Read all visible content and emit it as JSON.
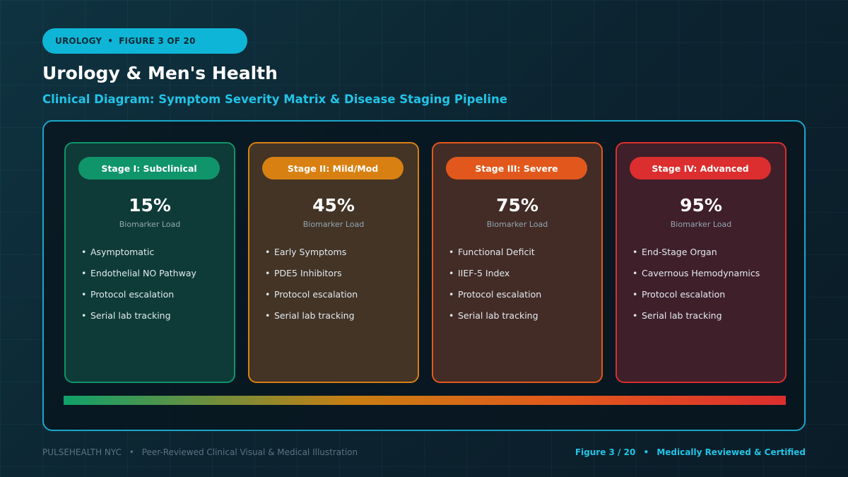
{
  "header": {
    "category": "UROLOGY",
    "figure_label": "FIGURE 3 OF 20",
    "title": "Urology & Men's Health",
    "subtitle": "Clinical Diagram: Symptom Severity Matrix & Disease Staging Pipeline"
  },
  "stages": [
    {
      "label": "Stage I: Subclinical",
      "value": "15%",
      "metric": "Biomarker Load",
      "items": [
        "Asymptomatic",
        "Endothelial NO Pathway",
        "Protocol escalation",
        "Serial lab tracking"
      ],
      "color": "#10956a",
      "bg": "#0e3b37"
    },
    {
      "label": "Stage II: Mild/Mod",
      "value": "45%",
      "metric": "Biomarker Load",
      "items": [
        "Early Symptoms",
        "PDE5 Inhibitors",
        "Protocol escalation",
        "Serial lab tracking"
      ],
      "color": "#d98012",
      "bg": "#433426"
    },
    {
      "label": "Stage III: Severe",
      "value": "75%",
      "metric": "Biomarker Load",
      "items": [
        "Functional Deficit",
        "IIEF-5 Index",
        "Protocol escalation",
        "Serial lab tracking"
      ],
      "color": "#e2581c",
      "bg": "#432c26"
    },
    {
      "label": "Stage IV: Advanced",
      "value": "95%",
      "metric": "Biomarker Load",
      "items": [
        "End-Stage Organ",
        "Cavernous Hemodynamics",
        "Protocol escalation",
        "Serial lab tracking"
      ],
      "color": "#dc2e2e",
      "bg": "#3f1f2a"
    }
  ],
  "footer": {
    "brand": "PULSEHEALTH NYC",
    "left_text": "Peer-Reviewed Clinical Visual & Medical Illustration",
    "figure": "Figure 3 / 20",
    "right_text": "Medically Reviewed & Certified"
  }
}
